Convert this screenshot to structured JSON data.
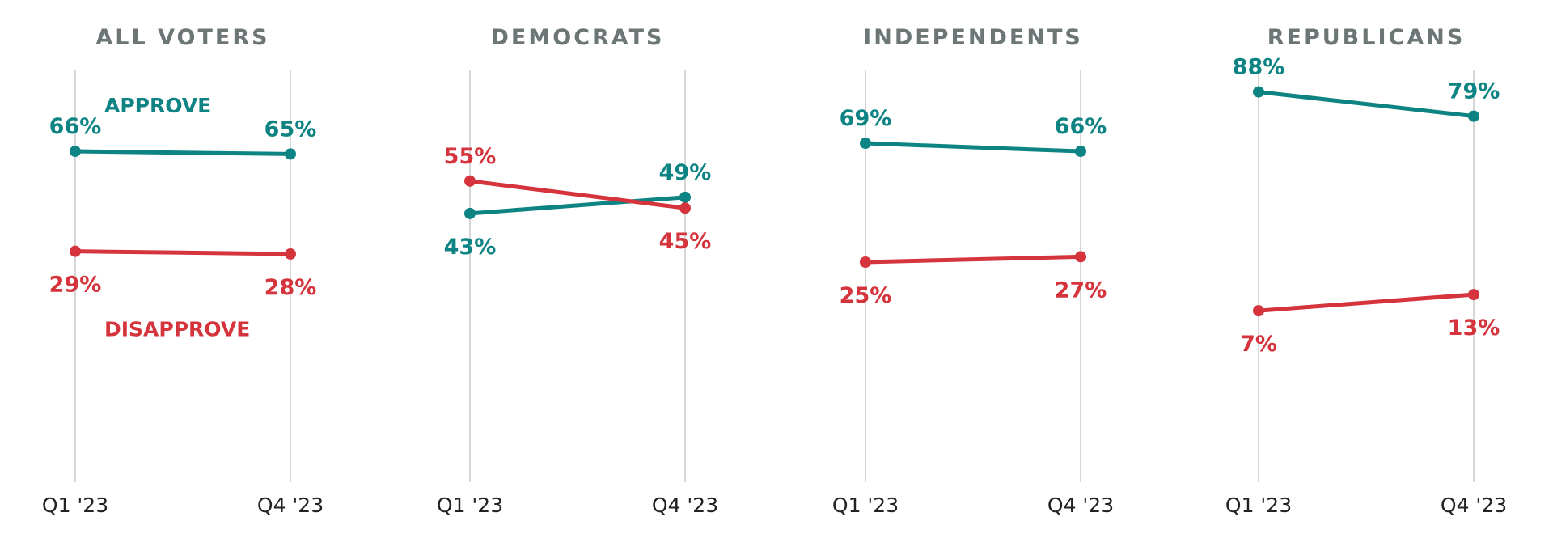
{
  "chart_data": {
    "type": "line",
    "colors": {
      "approve": "#0e8383",
      "disapprove": "#d5343c",
      "title": "#6d7676",
      "axis_text": "#222222",
      "gridline": "#d6d6d6"
    },
    "ylim": [
      0,
      100
    ],
    "grid": "vertical lines at each x category",
    "legend": "inline labels in first panel",
    "panels": [
      {
        "title": "ALL VOTERS",
        "categories": [
          "Q1 '23",
          "Q4 '23"
        ],
        "series": [
          {
            "name": "APPROVE",
            "key": "approve",
            "values": [
              66,
              65
            ],
            "labels": [
              "66%",
              "65%"
            ]
          },
          {
            "name": "DISAPPROVE",
            "key": "disapprove",
            "values": [
              29,
              28
            ],
            "labels": [
              "29%",
              "28%"
            ]
          }
        ]
      },
      {
        "title": "DEMOCRATS",
        "categories": [
          "Q1 '23",
          "Q4 '23"
        ],
        "series": [
          {
            "name": "",
            "key": "approve",
            "values": [
              43,
              49
            ],
            "labels": [
              "43%",
              "49%"
            ]
          },
          {
            "name": "",
            "key": "disapprove",
            "values": [
              55,
              45
            ],
            "labels": [
              "55%",
              "45%"
            ]
          }
        ]
      },
      {
        "title": "INDEPENDENTS",
        "categories": [
          "Q1 '23",
          "Q4 '23"
        ],
        "series": [
          {
            "name": "",
            "key": "approve",
            "values": [
              69,
              66
            ],
            "labels": [
              "69%",
              "66%"
            ]
          },
          {
            "name": "",
            "key": "disapprove",
            "values": [
              25,
              27
            ],
            "labels": [
              "25%",
              "27%"
            ]
          }
        ]
      },
      {
        "title": "REPUBLICANS",
        "categories": [
          "Q1 '23",
          "Q4 '23"
        ],
        "series": [
          {
            "name": "",
            "key": "approve",
            "values": [
              88,
              79
            ],
            "labels": [
              "88%",
              "79%"
            ]
          },
          {
            "name": "",
            "key": "disapprove",
            "values": [
              7,
              13
            ],
            "labels": [
              "7%",
              "13%"
            ]
          }
        ]
      }
    ]
  }
}
